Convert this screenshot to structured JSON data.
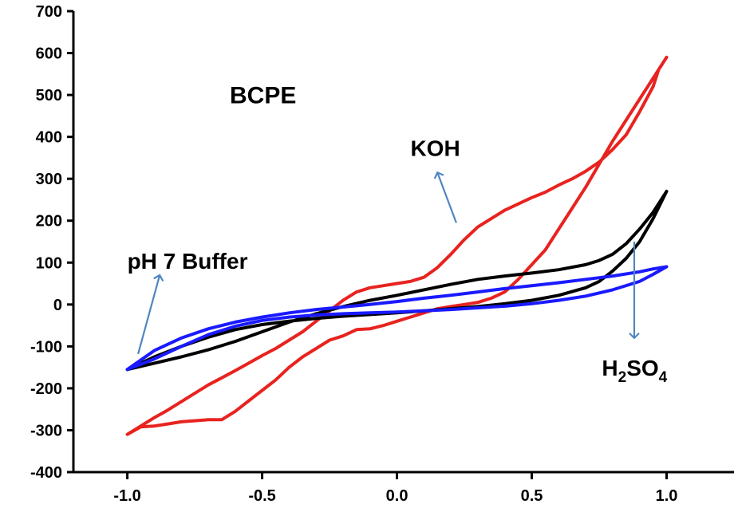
{
  "chart_data": {
    "type": "line",
    "title": "",
    "xlabel": "",
    "ylabel": "",
    "xlim": [
      -1.2,
      1.25
    ],
    "ylim": [
      -400,
      700
    ],
    "x_ticks": [
      -1.0,
      -0.5,
      0.0,
      0.5,
      1.0
    ],
    "x_tick_labels": [
      "-1.0",
      "-0.5",
      "0.0",
      "0.5",
      "1.0"
    ],
    "y_ticks": [
      -400,
      -300,
      -200,
      -100,
      0,
      100,
      200,
      300,
      400,
      500,
      600,
      700
    ],
    "y_tick_labels": [
      "-400",
      "-300",
      "-200",
      "-100",
      "0",
      "100",
      "200",
      "300",
      "400",
      "500",
      "600",
      "700"
    ],
    "grid": false,
    "series": [
      {
        "color": "#e8231f",
        "x": [
          -1.0,
          -0.95,
          -0.9,
          -0.85,
          -0.8,
          -0.7,
          -0.65,
          -0.6,
          -0.5,
          -0.45,
          -0.4,
          -0.35,
          -0.3,
          -0.25,
          -0.2,
          -0.15,
          -0.1,
          -0.05,
          0.0,
          0.05,
          0.1,
          0.15,
          0.2,
          0.25,
          0.3,
          0.35,
          0.4,
          0.45,
          0.5,
          0.55,
          0.6,
          0.65,
          0.7,
          0.75,
          0.8,
          0.85,
          0.9,
          0.95,
          1.0,
          1.0,
          0.97,
          0.95,
          0.9,
          0.85,
          0.8,
          0.75,
          0.7,
          0.65,
          0.6,
          0.55,
          0.5,
          0.45,
          0.4,
          0.35,
          0.3,
          0.25,
          0.2,
          0.15,
          0.1,
          0.05,
          0.0,
          -0.05,
          -0.1,
          -0.15,
          -0.2,
          -0.25,
          -0.3,
          -0.35,
          -0.4,
          -0.45,
          -0.5,
          -0.55,
          -0.6,
          -0.65,
          -0.7,
          -0.75,
          -0.8,
          -0.85,
          -0.9,
          -0.95,
          -1.0
        ],
        "y": [
          -310,
          -292,
          -290,
          -285,
          -280,
          -275,
          -275,
          -255,
          -205,
          -180,
          -150,
          -125,
          -105,
          -85,
          -75,
          -60,
          -58,
          -50,
          -40,
          -30,
          -20,
          -10,
          -5,
          0,
          5,
          15,
          30,
          60,
          95,
          130,
          180,
          230,
          280,
          335,
          390,
          440,
          490,
          540,
          590,
          590,
          560,
          520,
          460,
          405,
          370,
          340,
          318,
          300,
          285,
          268,
          255,
          240,
          225,
          205,
          185,
          155,
          120,
          88,
          65,
          55,
          50,
          45,
          40,
          30,
          10,
          -15,
          -40,
          -65,
          -85,
          -105,
          -122,
          -140,
          -158,
          -175,
          -192,
          -212,
          -232,
          -252,
          -270,
          -290,
          -310
        ]
      },
      {
        "color": "#000000",
        "x": [
          -1.0,
          -0.9,
          -0.8,
          -0.7,
          -0.6,
          -0.5,
          -0.4,
          -0.3,
          -0.2,
          -0.1,
          0.0,
          0.1,
          0.2,
          0.3,
          0.4,
          0.5,
          0.6,
          0.7,
          0.75,
          0.8,
          0.85,
          0.9,
          0.95,
          1.0,
          1.0,
          0.95,
          0.9,
          0.85,
          0.8,
          0.75,
          0.7,
          0.6,
          0.5,
          0.4,
          0.3,
          0.2,
          0.1,
          0.0,
          -0.1,
          -0.2,
          -0.3,
          -0.4,
          -0.5,
          -0.6,
          -0.7,
          -0.8,
          -0.9,
          -1.0
        ],
        "y": [
          -155,
          -140,
          -125,
          -108,
          -88,
          -65,
          -42,
          -22,
          -5,
          10,
          22,
          35,
          48,
          60,
          68,
          75,
          83,
          95,
          105,
          120,
          145,
          180,
          220,
          270,
          270,
          205,
          150,
          110,
          80,
          55,
          40,
          22,
          10,
          2,
          -5,
          -10,
          -15,
          -20,
          -24,
          -28,
          -33,
          -40,
          -48,
          -60,
          -78,
          -100,
          -125,
          -155
        ]
      },
      {
        "color": "#1a1aff",
        "x": [
          -1.0,
          -0.9,
          -0.8,
          -0.7,
          -0.6,
          -0.5,
          -0.4,
          -0.3,
          -0.2,
          -0.1,
          0.0,
          0.1,
          0.2,
          0.3,
          0.4,
          0.5,
          0.6,
          0.7,
          0.8,
          0.9,
          0.95,
          1.0,
          1.0,
          0.95,
          0.9,
          0.8,
          0.7,
          0.6,
          0.5,
          0.4,
          0.3,
          0.2,
          0.1,
          0.0,
          -0.1,
          -0.2,
          -0.3,
          -0.4,
          -0.5,
          -0.6,
          -0.7,
          -0.8,
          -0.9,
          -1.0
        ],
        "y": [
          -155,
          -110,
          -80,
          -58,
          -42,
          -30,
          -20,
          -12,
          -6,
          0,
          7,
          15,
          22,
          30,
          38,
          45,
          52,
          60,
          68,
          78,
          85,
          90,
          90,
          72,
          55,
          35,
          20,
          10,
          2,
          -4,
          -8,
          -12,
          -15,
          -18,
          -20,
          -22,
          -25,
          -30,
          -38,
          -52,
          -72,
          -100,
          -130,
          -155
        ]
      }
    ],
    "annotations": [
      {
        "text": "BCPE",
        "x": -0.62,
        "y": 480
      },
      {
        "text": "KOH",
        "x": 0.05,
        "y": 355
      },
      {
        "text": "pH 7 Buffer",
        "x": -1.0,
        "y": 85
      },
      {
        "text_main": "H",
        "sub1": "2",
        "text_mid": "SO",
        "sub2": "4",
        "x": 0.76,
        "y": -170
      }
    ],
    "arrow_color": "#4f86c0",
    "arrows": [
      {
        "x1": 0.22,
        "y1": 195,
        "x2": 0.15,
        "y2": 315
      },
      {
        "x1": -0.96,
        "y1": -118,
        "x2": -0.88,
        "y2": 70
      },
      {
        "x1": 0.88,
        "y1": 150,
        "x2": 0.88,
        "y2": -80
      }
    ]
  }
}
